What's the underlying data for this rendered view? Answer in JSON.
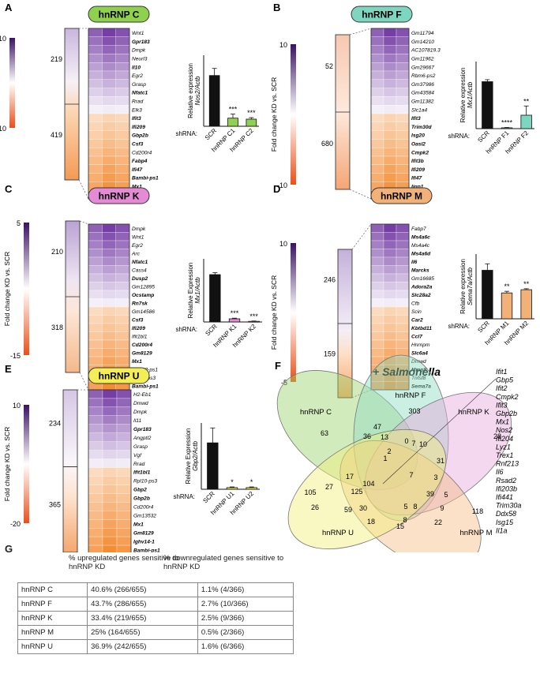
{
  "colors": {
    "purple": "#6a3d9a",
    "orange": "#f28c3a",
    "black": "#111111"
  },
  "panels": [
    {
      "letter": "A",
      "title": "hnRNP C",
      "badge": "#8fd14f",
      "scale": [
        "10",
        "-10"
      ],
      "counts": [
        "219",
        "419"
      ],
      "genes": [
        "Wnt1",
        "Gpr183",
        "Dmpk",
        "Neurl3",
        "Il10",
        "Egr2",
        "Grasp",
        "Nfatc1",
        "Rrad",
        "Elk3",
        "Ifit3",
        "Ifi209",
        "Gbp2b",
        "Csf3",
        "Cd200r4",
        "Fabp4",
        "Ifi47",
        "Bambi-ps1",
        "Mx1",
        "Nos2"
      ],
      "bold": [
        1,
        4,
        7,
        10,
        11,
        12,
        13,
        15,
        16,
        17,
        18,
        19
      ],
      "n_up": 10,
      "bars": {
        "ylabel": "Relative expression",
        "ylabel2": "Nos2/Actb",
        "values": [
          0.5,
          0.08,
          0.07
        ],
        "errors": [
          0.07,
          0.04,
          0.015
        ],
        "ymax": 0.7,
        "labels": [
          "SCR",
          "hnRNP C1",
          "hnRNP C2"
        ],
        "stars": [
          "",
          "***",
          "***"
        ],
        "fill": "#8fd14f"
      }
    },
    {
      "letter": "B",
      "title": "hnRNP F",
      "badge": "#7fd6c0",
      "scale": [
        "10",
        "-10"
      ],
      "counts": [
        "52",
        "680"
      ],
      "genes": [
        "Gm11794",
        "Gm14210",
        "AC107819.3",
        "Gm11962",
        "Gm29667",
        "Rbm6-ps2",
        "Gm37986",
        "Gm43584",
        "Gm11382",
        "Slc1a4",
        "Ifit3",
        "Trim30d",
        "Isg20",
        "Oasl2",
        "Cmpk2",
        "Ifit3b",
        "Ifi209",
        "Ifi47",
        "Iigp1",
        "Mx1"
      ],
      "bold": [
        10,
        11,
        12,
        13,
        14,
        15,
        16,
        17,
        18,
        19
      ],
      "n_up": 10,
      "bars": {
        "ylabel": "Relative expression",
        "ylabel2": "Mx1/Actb",
        "values": [
          2.8,
          0.05,
          0.8
        ],
        "errors": [
          0.12,
          0.02,
          0.55
        ],
        "ymax": 4,
        "labels": [
          "SCR",
          "hnRNP F1",
          "hnRNP F2"
        ],
        "stars": [
          "",
          "****",
          "**"
        ],
        "fill": "#7fd6c0"
      }
    },
    {
      "letter": "C",
      "title": "hnRNP K",
      "badge": "#e48ad6",
      "scale": [
        "5",
        "-15"
      ],
      "counts": [
        "210",
        "318"
      ],
      "genes": [
        "Dmpk",
        "Wnt1",
        "Egr2",
        "Arc",
        "Nfatc1",
        "Cass4",
        "Dusp2",
        "Gm12895",
        "Ocstamp",
        "Rn7sk",
        "Gm14586",
        "Csf3",
        "Ifi209",
        "Ifit1bl1",
        "Cd200r4",
        "Gm8129",
        "Mx1",
        "Mrpl23-ps1",
        "Rpl10-ps3",
        "Bambi-ps1"
      ],
      "bold": [
        4,
        6,
        8,
        9,
        11,
        12,
        14,
        15,
        16,
        19
      ],
      "n_up": 10,
      "bars": {
        "ylabel": "Relative Expression",
        "ylabel2": "Mx1/Actb",
        "values": [
          0.75,
          0.05,
          0.01
        ],
        "errors": [
          0.03,
          0.01,
          0.005
        ],
        "ymax": 1,
        "labels": [
          "SCR",
          "hnRNP K1",
          "hnRNP K2"
        ],
        "stars": [
          "",
          "***",
          "***"
        ],
        "fill": "#e48ad6"
      }
    },
    {
      "letter": "D",
      "title": "hnRNP M",
      "badge": "#f2b179",
      "scale": [
        "10",
        "-5"
      ],
      "counts": [
        "246",
        "159"
      ],
      "genes": [
        "Fabp7",
        "Ms4a6c",
        "Ms4a4c",
        "Ms4a6d",
        "Il6",
        "Marcks",
        "Gm16685",
        "Adora2a",
        "Slc28a2",
        "Cfb",
        "Scin",
        "Car2",
        "Kbtbd11",
        "Ccl7",
        "Hnrnpm",
        "Slc6a4",
        "Dmwd",
        "Mmp9",
        "Tnfsf8",
        "Sema7a"
      ],
      "bold": [
        1,
        3,
        4,
        5,
        7,
        8,
        11,
        12,
        13,
        15,
        17,
        19
      ],
      "n_up": 10,
      "bars": {
        "ylabel": "Relative expression",
        "ylabel2": "Sema7a/Actb",
        "values": [
          1.5,
          0.8,
          0.9
        ],
        "errors": [
          0.2,
          0.05,
          0.03
        ],
        "ymax": 2,
        "labels": [
          "SCR",
          "hnRNP M1",
          "hnRNP M2"
        ],
        "stars": [
          "",
          "**",
          "**"
        ],
        "fill": "#f2b179"
      }
    },
    {
      "letter": "E",
      "title": "hnRNP U",
      "badge": "#f3ee55",
      "scale": [
        "10",
        "-20"
      ],
      "counts": [
        "234",
        "365"
      ],
      "genes": [
        "H2-Eb1",
        "Dmwd",
        "Dmpk",
        "Il11",
        "Gpr183",
        "Angptl2",
        "Grasp",
        "Vgf",
        "Rrad",
        "Ifit1bl1",
        "Rpl10-ps3",
        "Gbp2",
        "Gbp2b",
        "Cd200r4",
        "Gm13532",
        "Mx1",
        "Gm8129",
        "Ighv14-1",
        "Bambi-ps1"
      ],
      "bold": [
        4,
        9,
        11,
        12,
        15,
        16,
        17,
        18
      ],
      "n_up": 9,
      "bars": {
        "ylabel": "Relative Expression",
        "ylabel2": "Gbp2/Actb",
        "values": [
          1.4,
          0.05,
          0.05
        ],
        "errors": [
          0.45,
          0.02,
          0.02
        ],
        "ymax": 2,
        "labels": [
          "SCR",
          "hnRNP U1",
          "hnRNP U2"
        ],
        "stars": [
          "",
          "*",
          "*"
        ],
        "fill": "#f3ee55"
      }
    }
  ],
  "common": {
    "axis_label": "Fold change KD vs. SCR",
    "shrna": "shRNA:"
  },
  "venn": {
    "letter": "F",
    "title": "+ Salmonella",
    "sets": [
      "hnRNP C",
      "hnRNP F",
      "hnRNP K",
      "hnRNP M",
      "hnRNP U"
    ],
    "counts": [
      "303",
      "63",
      "28",
      "118",
      "59",
      "105",
      "26",
      "47",
      "36",
      "13",
      "2",
      "0",
      "7",
      "10",
      "31",
      "7",
      "3",
      "17",
      "27",
      "104",
      "125",
      "39",
      "5",
      "9",
      "30",
      "5",
      "8",
      "8",
      "22",
      "18",
      "15",
      "1"
    ],
    "genes": [
      "Ifit1",
      "Gbp5",
      "Ifit2",
      "Cmpk2",
      "Ifit3",
      "Gbp2b",
      "Mx1",
      "Nos2",
      "Ifi204",
      "Lyz1",
      "Trex1",
      "Rnf213",
      "Il6",
      "Rsad2",
      "Ifi203b",
      "Ifi441",
      "Trim30a",
      "Ddx58",
      "Isg15",
      "Il1a"
    ]
  },
  "table": {
    "letter": "G",
    "col_up": "% upregulated genes sensitive to hnRNP KD",
    "col_down": "% downregulated genes sensitive to hnRNP KD",
    "rows": [
      [
        "hnRNP C",
        "40.6% (266/655)",
        "1.1% (4/366)"
      ],
      [
        "hnRNP F",
        "43.7% (286/655)",
        "2.7% (10/366)"
      ],
      [
        "hnRNP K",
        "33.4% (219/655)",
        "2.5% (9/366)"
      ],
      [
        "hnRNP M",
        "25% (164/655)",
        "0.5% (2/366)"
      ],
      [
        "hnRNP U",
        "36.9% (242/655)",
        "1.6% (6/366)"
      ]
    ]
  }
}
